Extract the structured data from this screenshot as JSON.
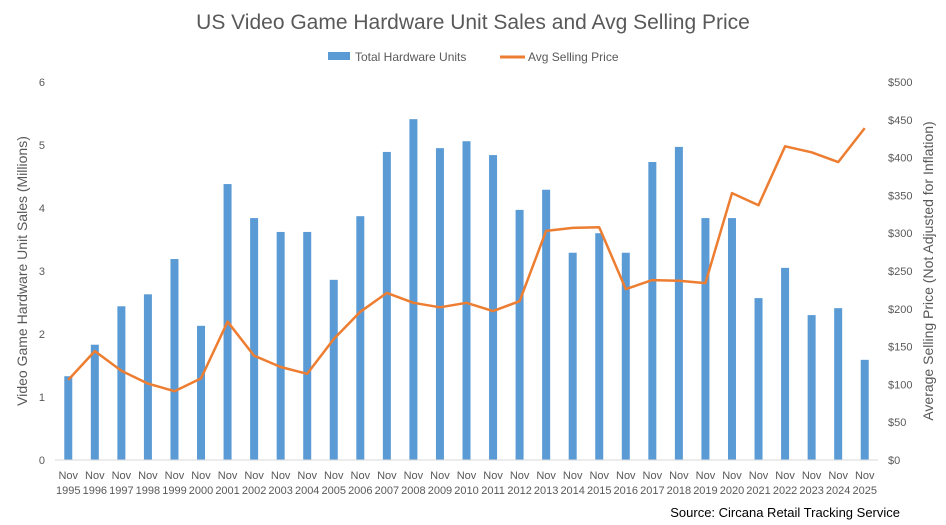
{
  "chart_data": {
    "type": "bar+line",
    "title": "US Video Game Hardware Unit Sales and Avg Selling Price",
    "source": "Source: Circana Retail Tracking Service",
    "ylabel": "Video Game Hardware Unit Sales (Millions)",
    "y2label": "Average Selling Price (Not Adjusted for Inflation)",
    "ylim": [
      0,
      6
    ],
    "y2lim": [
      0,
      500
    ],
    "yticks": [
      "0",
      "1",
      "2",
      "3",
      "4",
      "5",
      "6"
    ],
    "y2ticks": [
      "$0",
      "$50",
      "$100",
      "$150",
      "$200",
      "$250",
      "$300",
      "$350",
      "$400",
      "$450",
      "$500"
    ],
    "grid": false,
    "legend_position": "top",
    "categories": [
      "1995",
      "1996",
      "1997",
      "1998",
      "1999",
      "2000",
      "2001",
      "2002",
      "2003",
      "2004",
      "2005",
      "2006",
      "2007",
      "2008",
      "2009",
      "2010",
      "2011",
      "2012",
      "2013",
      "2014",
      "2015",
      "2016",
      "2017",
      "2018",
      "2019",
      "2020",
      "2021",
      "2022",
      "2023",
      "2024",
      "2025"
    ],
    "category_prefix": "Nov",
    "series": [
      {
        "name": "Total Hardware Units",
        "type": "bar",
        "axis": "left",
        "color": "#5b9bd5",
        "values": [
          1.33,
          1.83,
          2.44,
          2.63,
          3.19,
          2.13,
          4.38,
          3.84,
          3.62,
          3.62,
          2.86,
          3.87,
          4.89,
          5.41,
          4.95,
          5.06,
          4.84,
          3.97,
          4.29,
          3.29,
          3.6,
          3.29,
          4.73,
          4.97,
          3.84,
          3.84,
          2.57,
          3.05,
          2.3,
          2.41,
          1.59
        ]
      },
      {
        "name": "Avg Selling Price",
        "type": "line",
        "axis": "right",
        "color": "#ed7d31",
        "values": [
          106,
          144,
          118,
          101,
          91,
          108,
          183,
          138,
          123,
          114,
          160,
          196,
          221,
          208,
          202,
          208,
          197,
          210,
          303,
          307,
          308,
          226,
          238,
          237,
          234,
          353,
          337,
          415,
          407,
          394,
          439
        ]
      }
    ]
  }
}
